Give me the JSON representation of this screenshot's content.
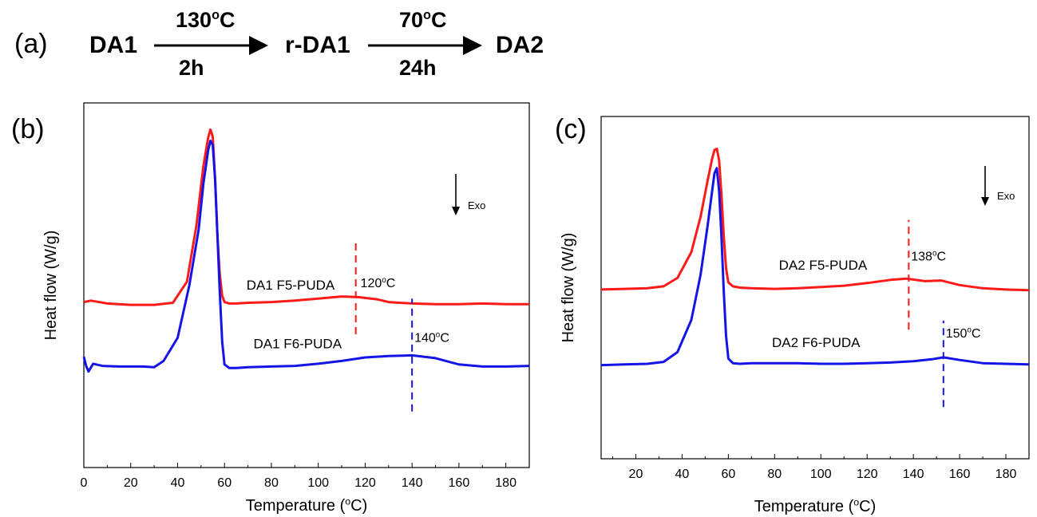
{
  "scheme": {
    "panel_label": "(a)",
    "start": "DA1",
    "step1": {
      "temp_value": "130",
      "temp_sup": "o",
      "temp_unit": "C",
      "time": "2h"
    },
    "intermediate": "r-DA1",
    "step2": {
      "temp_value": "70",
      "temp_sup": "o",
      "temp_unit": "C",
      "time": "24h"
    },
    "product": "DA2"
  },
  "chart_data": [
    {
      "panel_label": "(b)",
      "type": "line",
      "xlabel": "Temperature (",
      "xlabel_sup": "o",
      "xlabel_end": "C)",
      "ylabel": "Heat flow (W/g)",
      "xlim": [
        0,
        190
      ],
      "xticks": [
        0,
        20,
        40,
        60,
        80,
        100,
        120,
        140,
        160,
        180
      ],
      "exo_label": "Exo",
      "series": [
        {
          "name": "DA1 F5-PUDA",
          "color": "#ff1a1a",
          "x": [
            0,
            3,
            10,
            20,
            30,
            38,
            44,
            48,
            51,
            53,
            54,
            55,
            56,
            57,
            58,
            59,
            60,
            62,
            65,
            70,
            80,
            90,
            100,
            110,
            117,
            125,
            130,
            140,
            150,
            160,
            170,
            180,
            190
          ],
          "y": [
            0.06,
            0.08,
            0.04,
            0.02,
            0.02,
            0.05,
            0.35,
            1.15,
            2.0,
            2.4,
            2.52,
            2.42,
            1.8,
            1.0,
            0.45,
            0.15,
            0.06,
            0.04,
            0.04,
            0.05,
            0.06,
            0.08,
            0.11,
            0.14,
            0.13,
            0.1,
            0.06,
            0.04,
            0.03,
            0.03,
            0.04,
            0.03,
            0.03
          ]
        },
        {
          "name": "DA1 F6-PUDA",
          "color": "#1414e6",
          "x": [
            0,
            1,
            2,
            4,
            8,
            15,
            25,
            30,
            34,
            40,
            45,
            49,
            51,
            53,
            54,
            55,
            56,
            57,
            58,
            59,
            60,
            62,
            65,
            70,
            80,
            90,
            100,
            110,
            120,
            130,
            140,
            150,
            160,
            170,
            180,
            190
          ],
          "y": [
            -0.72,
            -0.85,
            -0.93,
            -0.82,
            -0.85,
            -0.86,
            -0.86,
            -0.87,
            -0.78,
            -0.45,
            0.3,
            1.1,
            1.75,
            2.22,
            2.36,
            2.3,
            1.8,
            1.0,
            0.2,
            -0.5,
            -0.83,
            -0.88,
            -0.88,
            -0.87,
            -0.86,
            -0.85,
            -0.82,
            -0.78,
            -0.73,
            -0.71,
            -0.7,
            -0.74,
            -0.83,
            -0.86,
            -0.86,
            -0.85
          ]
        }
      ],
      "annotations": [
        {
          "label": "DA1 F5-PUDA",
          "x": 107,
          "y": 0.24,
          "anchor": "end"
        },
        {
          "label": "DA1 F6-PUDA",
          "x": 110,
          "y": -0.6,
          "anchor": "end"
        },
        {
          "label_value": "120",
          "label_sup": "o",
          "label_unit": "C",
          "x": 118,
          "y": 0.27,
          "line_x": 116,
          "line_y": [
            -0.4,
            0.91
          ],
          "color": "#ff1a1a"
        },
        {
          "label_value": "140",
          "label_sup": "o",
          "label_unit": "C",
          "x": 141,
          "y": -0.51,
          "line_x": 140,
          "line_y": [
            -1.5,
            0.11
          ],
          "color": "#1414e6"
        }
      ]
    },
    {
      "panel_label": "(c)",
      "type": "line",
      "xlabel": "Temperature (",
      "xlabel_sup": "o",
      "xlabel_end": "C)",
      "ylabel": "Heat flow (W/g)",
      "xlim": [
        5,
        190
      ],
      "xticks": [
        20,
        40,
        60,
        80,
        100,
        120,
        140,
        160,
        180
      ],
      "exo_label": "Exo",
      "series": [
        {
          "name": "DA2 F5-PUDA",
          "color": "#ff1a1a",
          "x": [
            5,
            15,
            25,
            32,
            38,
            44,
            48,
            51,
            53,
            54,
            55,
            56,
            57,
            58,
            59,
            60,
            62,
            65,
            70,
            80,
            90,
            100,
            110,
            120,
            130,
            137,
            145,
            152,
            160,
            170,
            180,
            190
          ],
          "y": [
            0.02,
            0.03,
            0.04,
            0.07,
            0.2,
            0.6,
            1.15,
            1.7,
            2.05,
            2.18,
            2.2,
            2.02,
            1.5,
            0.85,
            0.35,
            0.13,
            0.07,
            0.05,
            0.04,
            0.03,
            0.04,
            0.06,
            0.08,
            0.12,
            0.17,
            0.19,
            0.15,
            0.16,
            0.09,
            0.04,
            0.02,
            0.01
          ]
        },
        {
          "name": "DA2 F6-PUDA",
          "color": "#1414e6",
          "x": [
            5,
            15,
            25,
            32,
            38,
            44,
            48,
            51,
            53,
            54,
            55,
            56,
            57,
            58,
            59,
            60,
            62,
            65,
            70,
            80,
            90,
            100,
            110,
            120,
            130,
            140,
            148,
            153,
            160,
            170,
            180,
            190
          ],
          "y": [
            -1.15,
            -1.14,
            -1.13,
            -1.1,
            -0.95,
            -0.45,
            0.25,
            1.0,
            1.55,
            1.82,
            1.9,
            1.55,
            0.85,
            0.0,
            -0.7,
            -1.05,
            -1.12,
            -1.13,
            -1.12,
            -1.12,
            -1.12,
            -1.13,
            -1.13,
            -1.12,
            -1.11,
            -1.09,
            -1.06,
            -1.03,
            -1.07,
            -1.12,
            -1.13,
            -1.14
          ]
        }
      ],
      "annotations": [
        {
          "label": "DA2 F5-PUDA",
          "x": 120,
          "y": 0.33,
          "anchor": "end"
        },
        {
          "label": "DA2 F6-PUDA",
          "x": 117,
          "y": -0.87,
          "anchor": "end"
        },
        {
          "label_value": "138",
          "label_sup": "o",
          "label_unit": "C",
          "x": 139,
          "y": 0.47,
          "line_x": 138,
          "line_y": [
            -0.6,
            1.1
          ],
          "color": "#ff1a1a"
        },
        {
          "label_value": "150",
          "label_sup": "o",
          "label_unit": "C",
          "x": 154,
          "y": -0.72,
          "line_x": 153,
          "line_y": [
            -1.8,
            -0.46
          ],
          "color": "#1414e6"
        }
      ]
    }
  ]
}
